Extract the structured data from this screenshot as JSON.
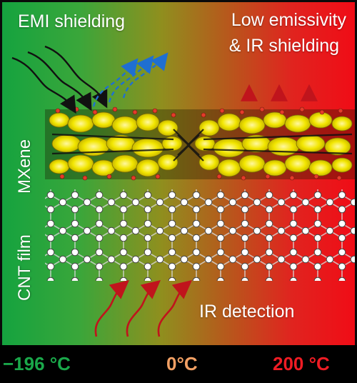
{
  "labels": {
    "emi_shielding": "EMI shielding",
    "low_emissivity": "Low emissivity",
    "ir_shielding": "& IR shielding",
    "mxene": "MXene",
    "cnt_film": "CNT film",
    "ir_detection": "IR detection"
  },
  "temperature_scale": {
    "cold": "−196 °C",
    "mid": "0°C",
    "hot": "200 °C"
  },
  "colors": {
    "cold": "#1aa84a",
    "mid": "#f2a064",
    "hot": "#ee1c24",
    "mxene_layer": "#f2e600",
    "incoming_wave": "#111111",
    "reflected_wave": "#1f6fd1",
    "ir_wave": "#c0141c"
  },
  "icons": {
    "incoming": "black-wave-arrow-icon",
    "reflected": "dashed-blue-wave-arrow-icon",
    "emitted": "small-red-arrow-icon",
    "ir": "red-wave-arrow-icon"
  }
}
